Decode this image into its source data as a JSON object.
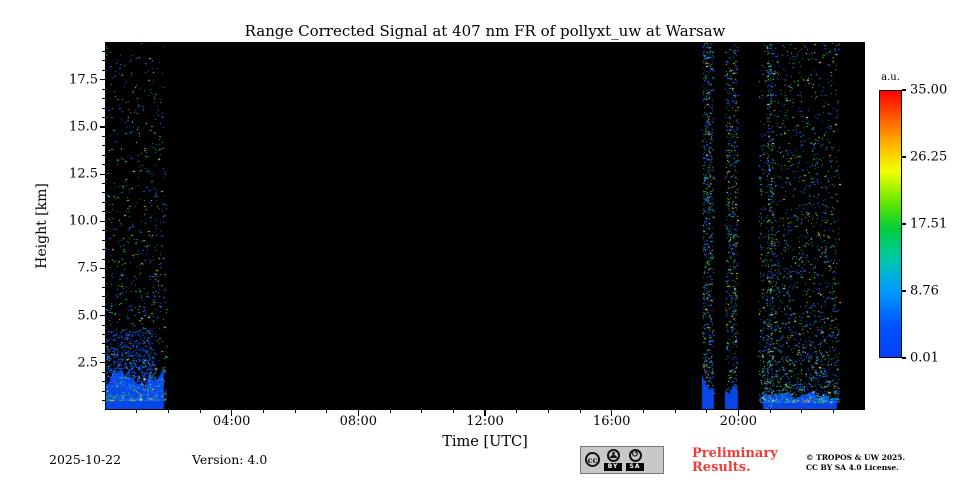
{
  "chart_data": {
    "type": "heatmap",
    "title": "Range Corrected Signal at 407 nm FR of pollyxt_uw at Warsaw",
    "xlabel": "Time [UTC]",
    "ylabel": "Height [km]",
    "x_range_hours": [
      0,
      24
    ],
    "x_tick_hours": [
      4,
      8,
      12,
      16,
      20
    ],
    "x_tick_labels": [
      "04:00",
      "08:00",
      "12:00",
      "16:00",
      "20:00"
    ],
    "x_minor_tick_every_hours": 1,
    "y_range_km": [
      0,
      19.5
    ],
    "y_tick_km": [
      2.5,
      5.0,
      7.5,
      10.0,
      12.5,
      15.0,
      17.5
    ],
    "y_tick_labels": [
      "2.5",
      "5.0",
      "7.5",
      "10.0",
      "12.5",
      "15.0",
      "17.5"
    ],
    "y_minor_tick_every_km": 0.5,
    "background_color": "#000000",
    "colorbar": {
      "label": "a.u.",
      "tick_labels": [
        "35.00",
        "26.25",
        "17.51",
        "8.76",
        "0.01"
      ],
      "tick_values": [
        35.0,
        26.25,
        17.51,
        8.76,
        0.01
      ],
      "gradient_stops": [
        {
          "pos": 0.0,
          "color": "#ff0000"
        },
        {
          "pos": 0.1,
          "color": "#ff5a00"
        },
        {
          "pos": 0.2,
          "color": "#ffb400"
        },
        {
          "pos": 0.3,
          "color": "#f5ff00"
        },
        {
          "pos": 0.42,
          "color": "#62e600"
        },
        {
          "pos": 0.52,
          "color": "#00cd3c"
        },
        {
          "pos": 0.63,
          "color": "#00c9a8"
        },
        {
          "pos": 0.75,
          "color": "#009bff"
        },
        {
          "pos": 0.88,
          "color": "#0055ff"
        },
        {
          "pos": 1.0,
          "color": "#053ff5"
        }
      ]
    },
    "speckle_palette": [
      {
        "color": "#2a5cff",
        "w": 0.5
      },
      {
        "color": "#00b9c6",
        "w": 0.17
      },
      {
        "color": "#00c244",
        "w": 0.15
      },
      {
        "color": "#9fd916",
        "w": 0.07
      },
      {
        "color": "#ffd400",
        "w": 0.05
      },
      {
        "color": "#ff7f00",
        "w": 0.03
      },
      {
        "color": "#ffffff",
        "w": 0.03
      }
    ],
    "signal_regions": [
      {
        "kind": "surface_block",
        "t_start": 0.0,
        "t_end": 1.85,
        "height_km": 2.3,
        "color": "#0846e8"
      },
      {
        "kind": "speckle",
        "t_start": 0.0,
        "t_end": 1.6,
        "h_min_km": 1.2,
        "h_max_km": 4.2,
        "density": 0.4,
        "falloff": 1.6,
        "color": "#0e52ec"
      },
      {
        "kind": "speckle",
        "t_start": 0.0,
        "t_end": 1.95,
        "h_min_km": 0.5,
        "h_max_km": 19.5,
        "density": 0.085,
        "falloff": 2.6
      },
      {
        "kind": "speckle",
        "t_start": 18.88,
        "t_end": 19.22,
        "h_min_km": 0.0,
        "h_max_km": 19.5,
        "density": 0.28,
        "falloff": 1.0
      },
      {
        "kind": "surface_block",
        "t_start": 18.88,
        "t_end": 19.22,
        "height_km": 2.0,
        "color": "#0846e8"
      },
      {
        "kind": "speckle",
        "t_start": 19.6,
        "t_end": 19.98,
        "h_min_km": 0.0,
        "h_max_km": 19.5,
        "density": 0.2,
        "falloff": 1.0
      },
      {
        "kind": "surface_block",
        "t_start": 19.6,
        "t_end": 19.98,
        "height_km": 1.6,
        "color": "#0846e8"
      },
      {
        "kind": "surface_block",
        "t_start": 20.78,
        "t_end": 23.1,
        "height_km": 1.0,
        "color": "#0846e8"
      },
      {
        "kind": "speckle",
        "t_start": 20.65,
        "t_end": 23.2,
        "h_min_km": 0.4,
        "h_max_km": 19.5,
        "density": 0.12,
        "falloff": 2.0
      },
      {
        "kind": "speckle",
        "t_start": 20.9,
        "t_end": 21.1,
        "h_min_km": 0.0,
        "h_max_km": 19.5,
        "density": 0.22,
        "falloff": 1.0
      }
    ]
  },
  "footer": {
    "date": "2025-10-22",
    "version": "Version: 4.0",
    "preliminary_line1": "Preliminary",
    "preliminary_line2": "Results.",
    "preliminary_color": "#f23b33",
    "copyright_line1": "© TROPOS & UW 2025.",
    "copyright_line2": "CC BY SA 4.0 License.",
    "cc_badge": {
      "cc_label": "cc",
      "by_label": "BY",
      "sa_label": "SA"
    }
  }
}
